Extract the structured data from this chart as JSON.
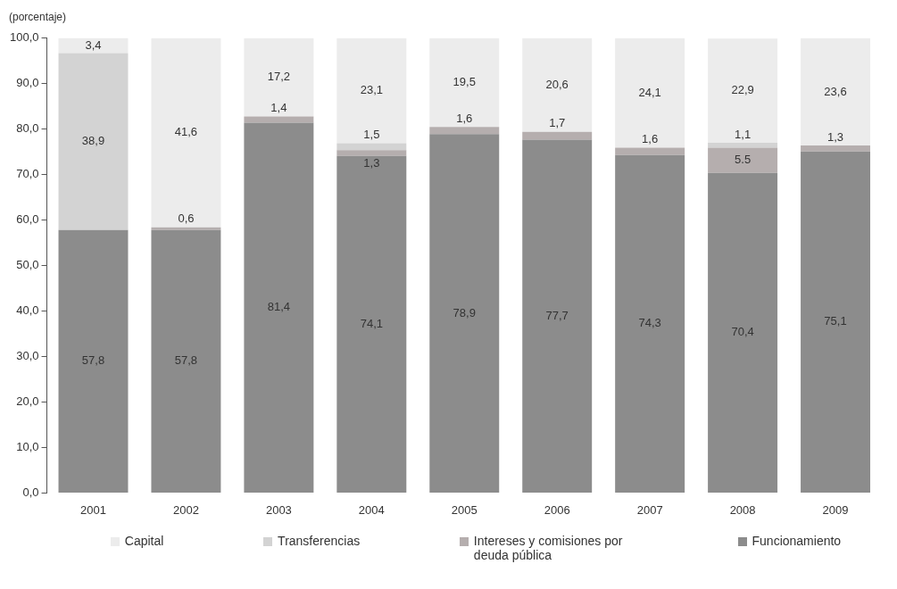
{
  "chart_data": {
    "type": "bar",
    "stacked": true,
    "ylabel": "(porcentaje)",
    "categories": [
      "2001",
      "2002",
      "2003",
      "2004",
      "2005",
      "2006",
      "2007",
      "2008",
      "2009"
    ],
    "series": [
      {
        "name": "Funcionamiento",
        "color": "#8c8c8c",
        "values": [
          57.8,
          57.8,
          81.4,
          74.1,
          78.9,
          77.7,
          74.3,
          70.4,
          75.1
        ],
        "value_labels": [
          "57,8",
          "57,8",
          "81,4",
          "74,1",
          "78,9",
          "77,7",
          "74,3",
          "70,4",
          "75,1"
        ]
      },
      {
        "name": "Intereses y comisiones por deuda pública",
        "color": "#b5aeae",
        "values": [
          null,
          0.6,
          1.4,
          1.3,
          1.6,
          1.7,
          1.6,
          5.5,
          1.3
        ],
        "value_labels": [
          null,
          "0,6",
          "1,4",
          "1,3",
          "1,6",
          "1,7",
          "1,6",
          "5.5",
          "1,3"
        ]
      },
      {
        "name": "Transferencias",
        "color": "#d3d3d3",
        "values": [
          38.9,
          null,
          null,
          1.5,
          null,
          null,
          null,
          1.1,
          null
        ],
        "value_labels": [
          "38,9",
          null,
          null,
          "1,5",
          null,
          null,
          null,
          "1,1",
          null
        ]
      },
      {
        "name": "Capital",
        "color": "#ececec",
        "values": [
          3.4,
          41.6,
          17.2,
          23.1,
          19.5,
          20.6,
          24.1,
          22.9,
          23.6
        ],
        "value_labels": [
          "3,4",
          "41,6",
          "17,2",
          "23,1",
          "19,5",
          "20,6",
          "24,1",
          "22,9",
          "23,6"
        ]
      }
    ],
    "ylim": [
      0,
      100
    ],
    "yticks": [
      {
        "value": 0,
        "label": "0,0"
      },
      {
        "value": 10,
        "label": "10,0"
      },
      {
        "value": 20,
        "label": "20,0"
      },
      {
        "value": 30,
        "label": "30,0"
      },
      {
        "value": 40,
        "label": "40,0"
      },
      {
        "value": 50,
        "label": "50,0"
      },
      {
        "value": 60,
        "label": "60,0"
      },
      {
        "value": 70,
        "label": "70,0"
      },
      {
        "value": 80,
        "label": "80,0"
      },
      {
        "value": 90,
        "label": "90,0"
      },
      {
        "value": 100,
        "label": "100,0"
      }
    ],
    "grid": false,
    "legend": "bottom"
  }
}
